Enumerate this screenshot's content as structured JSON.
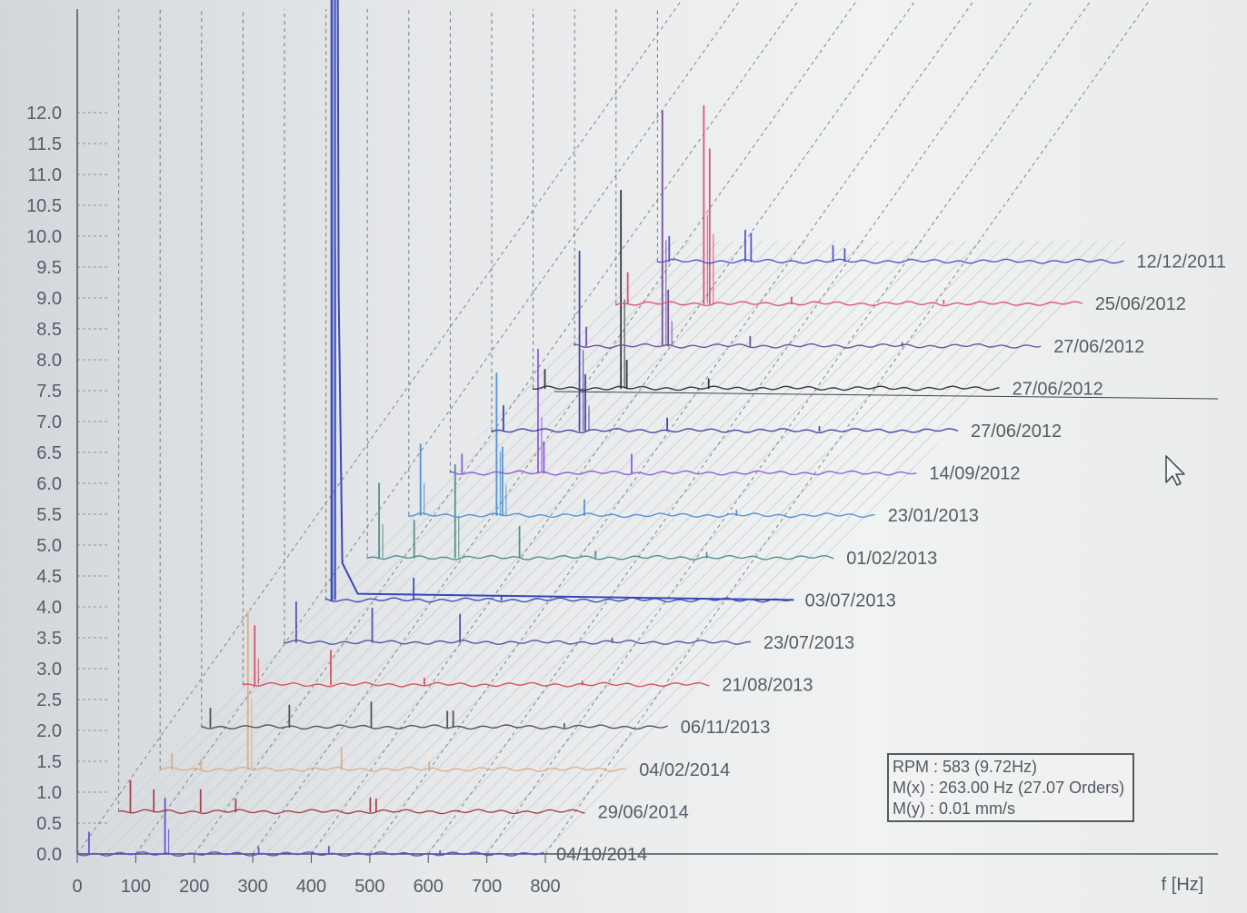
{
  "chart_data": {
    "type": "waterfall",
    "title": "",
    "xlabel": "f [Hz]",
    "ylabel": "",
    "x_ticks": [
      0,
      100,
      200,
      300,
      400,
      500,
      600,
      700,
      800
    ],
    "y_ticks": [
      "0.0",
      "0.5",
      "1.0",
      "1.5",
      "2.0",
      "2.5",
      "3.0",
      "3.5",
      "4.0",
      "4.5",
      "5.0",
      "5.5",
      "6.0",
      "6.5",
      "7.0",
      "7.5",
      "8.0",
      "8.5",
      "9.0",
      "9.5",
      "10.0",
      "10.5",
      "11.0",
      "11.5",
      "12.0"
    ],
    "xlim": [
      0,
      800
    ],
    "ylim": [
      0,
      12
    ],
    "grid": true,
    "series": [
      {
        "name": "04/10/2014",
        "color": "#5a4fd8",
        "peaks": [
          [
            20,
            0.35
          ],
          [
            150,
            0.9
          ],
          [
            310,
            0.1
          ],
          [
            430,
            0.12
          ],
          [
            620,
            0.05
          ]
        ]
      },
      {
        "name": "29/06/2014",
        "color": "#a23b47",
        "peaks": [
          [
            20,
            0.5
          ],
          [
            60,
            0.35
          ],
          [
            140,
            0.35
          ],
          [
            200,
            0.2
          ],
          [
            430,
            0.22
          ],
          [
            440,
            0.2
          ]
        ]
      },
      {
        "name": "04/02/2014",
        "color": "#e0ab83",
        "peaks": [
          [
            20,
            0.25
          ],
          [
            70,
            0.15
          ],
          [
            150,
            2.55
          ],
          [
            310,
            0.35
          ],
          [
            460,
            0.12
          ]
        ]
      },
      {
        "name": "06/11/2013",
        "color": "#4a4d55",
        "peaks": [
          [
            15,
            0.3
          ],
          [
            150,
            0.35
          ],
          [
            290,
            0.4
          ],
          [
            420,
            0.25
          ],
          [
            430,
            0.25
          ],
          [
            620,
            0.05
          ]
        ]
      },
      {
        "name": "21/08/2013",
        "color": "#d84a5a",
        "peaks": [
          [
            20,
            0.95
          ],
          [
            150,
            0.55
          ],
          [
            310,
            0.1
          ],
          [
            580,
            0.05
          ]
        ]
      },
      {
        "name": "23/07/2013",
        "color": "#4d4fa8",
        "peaks": [
          [
            20,
            0.65
          ],
          [
            150,
            0.55
          ],
          [
            300,
            0.45
          ],
          [
            560,
            0.06
          ]
        ]
      },
      {
        "name": "03/07/2013",
        "color": "#3947b8",
        "peaks": [
          [
            10,
            12.5
          ],
          [
            150,
            0.35
          ],
          [
            300,
            0.05
          ]
        ]
      },
      {
        "name": "01/02/2013",
        "color": "#4d8c8c",
        "peaks": [
          [
            20,
            1.2
          ],
          [
            80,
            0.6
          ],
          [
            150,
            1.5
          ],
          [
            260,
            0.5
          ],
          [
            390,
            0.1
          ],
          [
            580,
            0.08
          ]
        ]
      },
      {
        "name": "23/01/2013",
        "color": "#4a90d8",
        "peaks": [
          [
            20,
            1.15
          ],
          [
            150,
            2.3
          ],
          [
            160,
            1.1
          ],
          [
            300,
            0.25
          ],
          [
            560,
            0.08
          ]
        ]
      },
      {
        "name": "14/09/2012",
        "color": "#8a58d8",
        "peaks": [
          [
            20,
            0.3
          ],
          [
            150,
            2.0
          ],
          [
            160,
            0.5
          ],
          [
            310,
            0.3
          ]
        ]
      },
      {
        "name": "27/06/2012",
        "color": "#3e3fa2",
        "peaks": [
          [
            20,
            0.4
          ],
          [
            150,
            2.9
          ],
          [
            160,
            0.9
          ],
          [
            300,
            0.2
          ],
          [
            560,
            0.06
          ]
        ]
      },
      {
        "name": "27/06/2012",
        "color": "#2d3038",
        "peaks": [
          [
            20,
            0.3
          ],
          [
            150,
            3.2
          ],
          [
            160,
            0.45
          ],
          [
            300,
            0.15
          ]
        ]
      },
      {
        "name": "27/06/2012",
        "color": "#6a4a9a",
        "peaks": [
          [
            20,
            0.3
          ],
          [
            150,
            3.8
          ],
          [
            160,
            0.9
          ],
          [
            300,
            0.15
          ],
          [
            560,
            0.05
          ]
        ]
      },
      {
        "name": "25/06/2012",
        "color": "#d84f70",
        "peaks": [
          [
            20,
            0.5
          ],
          [
            150,
            3.2
          ],
          [
            160,
            2.5
          ],
          [
            300,
            0.1
          ],
          [
            560,
            0.05
          ]
        ]
      },
      {
        "name": "12/12/2011",
        "color": "#4a4fc8",
        "peaks": [
          [
            20,
            0.4
          ],
          [
            150,
            0.5
          ],
          [
            160,
            0.45
          ],
          [
            300,
            0.25
          ],
          [
            320,
            0.2
          ]
        ]
      }
    ]
  },
  "info_box": {
    "rpm": "RPM : 583 (9.72Hz)",
    "mx": "M(x) : 263.00 Hz (27.07 Orders)",
    "my": "M(y) : 0.01 mm/s"
  }
}
